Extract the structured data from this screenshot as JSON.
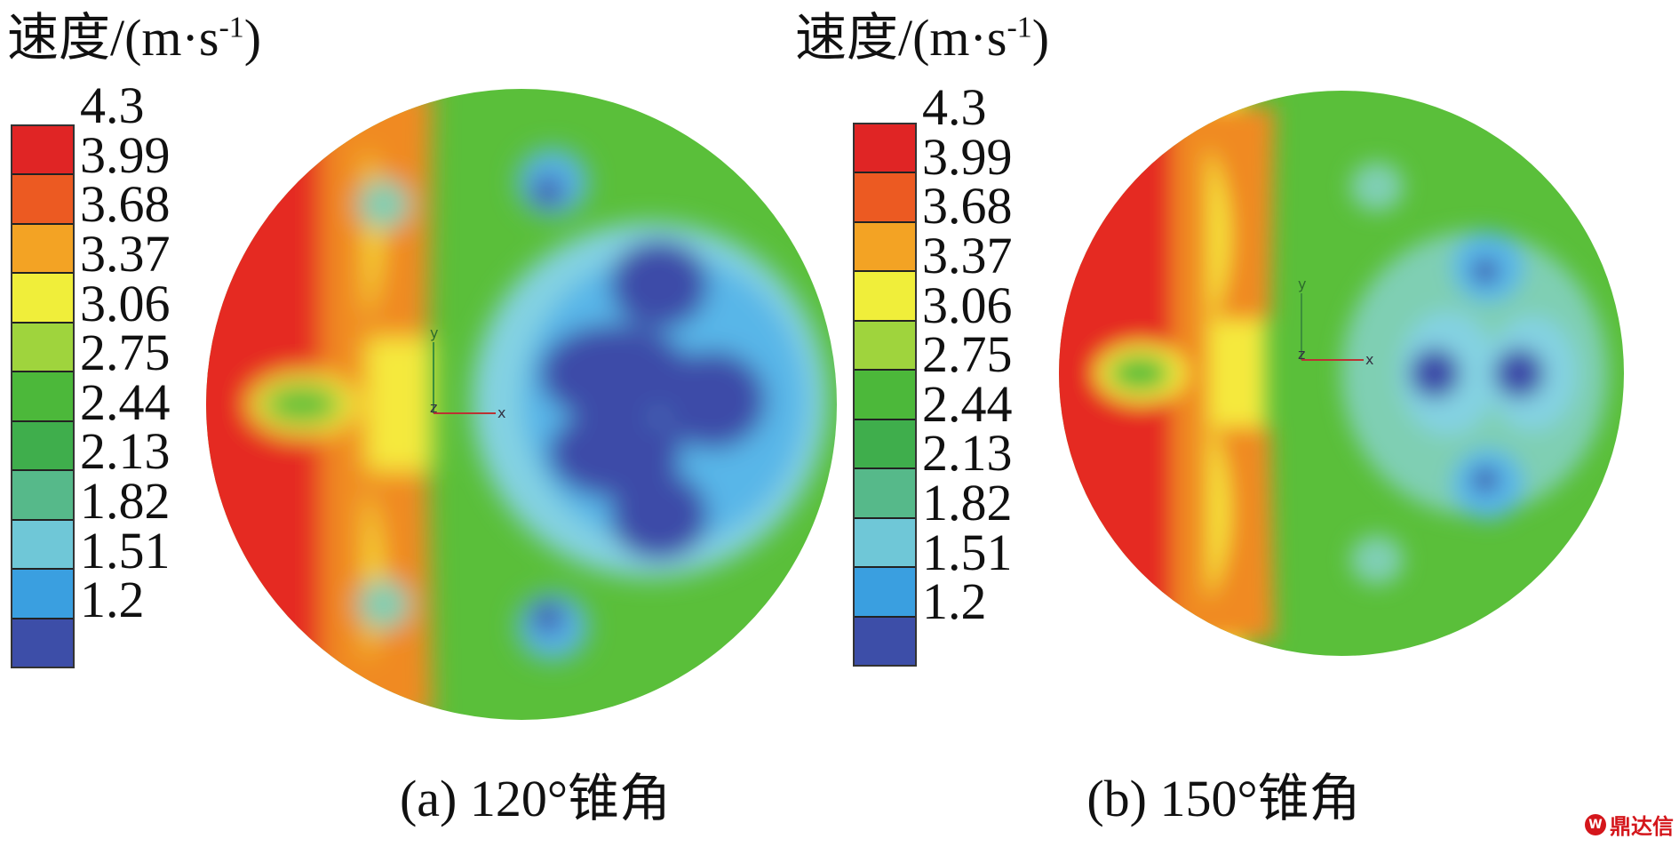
{
  "legend_title_main": "速度/(m·s",
  "legend_title_sup": "-1",
  "legend_title_close": ")",
  "ticks": [
    "4.3",
    "3.99",
    "3.68",
    "3.37",
    "3.06",
    "2.75",
    "2.44",
    "2.13",
    "1.82",
    "1.51",
    "1.2"
  ],
  "bar_colors": [
    "#e02525",
    "#ec5a22",
    "#f3a324",
    "#f0ee3a",
    "#9fd43d",
    "#4cb83a",
    "#3fae4c",
    "#56b98a",
    "#6fc7d7",
    "#3a9fe0",
    "#3d4ea8"
  ],
  "palette": {
    "red": "#e52a22",
    "orange": "#f08a23",
    "yellow": "#f5e93d",
    "lime": "#b2db3c",
    "green": "#5abf3a",
    "cyan": "#84d2e2",
    "lightblue": "#58b6e8",
    "blue": "#3d4ca8"
  },
  "axes_labels": {
    "y": "y",
    "z": "z",
    "x": "x"
  },
  "panels": [
    {
      "caption": "(a) 120°锥角"
    },
    {
      "caption": "(b) 150°锥角"
    }
  ],
  "watermark": {
    "text": "鼎达信",
    "logo": "W"
  }
}
